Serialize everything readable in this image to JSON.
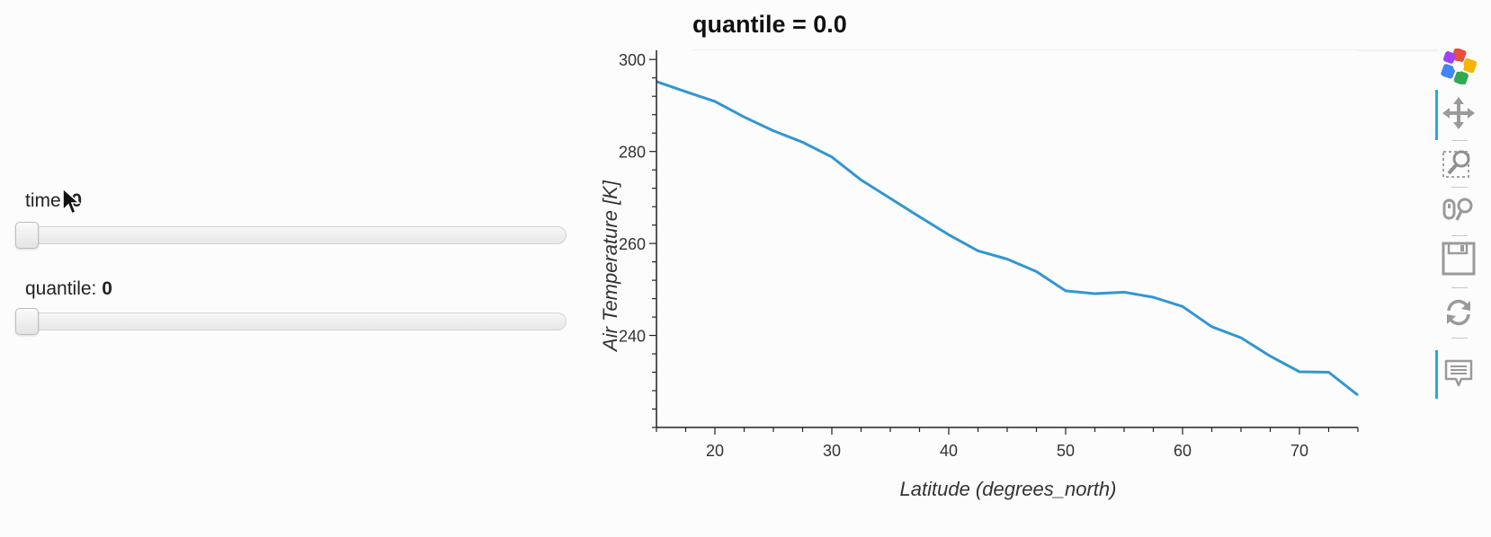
{
  "widgets": {
    "time": {
      "label": "time: ",
      "value": "0",
      "slider_fraction": 0
    },
    "quantile": {
      "label": "quantile: ",
      "value": "0",
      "slider_fraction": 0
    }
  },
  "toolbar": {
    "tools": [
      {
        "name": "bokeh-logo-icon",
        "active": false
      },
      {
        "name": "pan-icon",
        "active": true
      },
      {
        "name": "box-zoom-icon",
        "active": false
      },
      {
        "name": "wheel-zoom-icon",
        "active": false
      },
      {
        "name": "save-icon",
        "active": false
      },
      {
        "name": "reset-icon",
        "active": false
      },
      {
        "name": "hover-icon",
        "active": true
      }
    ],
    "active_color": "#26aae1"
  },
  "chart_data": {
    "type": "line",
    "title": "quantile = 0.0",
    "xlabel": "Latitude (degrees_north)",
    "ylabel": "Air Temperature [K]",
    "xlim": [
      15,
      75
    ],
    "ylim": [
      220,
      302
    ],
    "x_ticks": [
      20,
      30,
      40,
      50,
      60,
      70
    ],
    "y_ticks": [
      240,
      260,
      280,
      300
    ],
    "line_color": "#3296d2",
    "grid": false,
    "series": [
      {
        "x": [
          15,
          17.5,
          20,
          22.5,
          25,
          27.5,
          30,
          32.5,
          35,
          37.5,
          40,
          42.5,
          45,
          47.5,
          50,
          52.5,
          55,
          57.5,
          60,
          62.5,
          65,
          67.5,
          70,
          72.5,
          75
        ],
        "values": [
          295.2,
          293.0,
          290.9,
          287.5,
          284.5,
          282.0,
          278.8,
          273.8,
          269.8,
          265.8,
          261.9,
          258.4,
          256.6,
          253.9,
          249.7,
          249.1,
          249.4,
          248.3,
          246.3,
          241.9,
          239.5,
          235.5,
          232.1,
          232.0,
          227.0
        ]
      }
    ]
  }
}
